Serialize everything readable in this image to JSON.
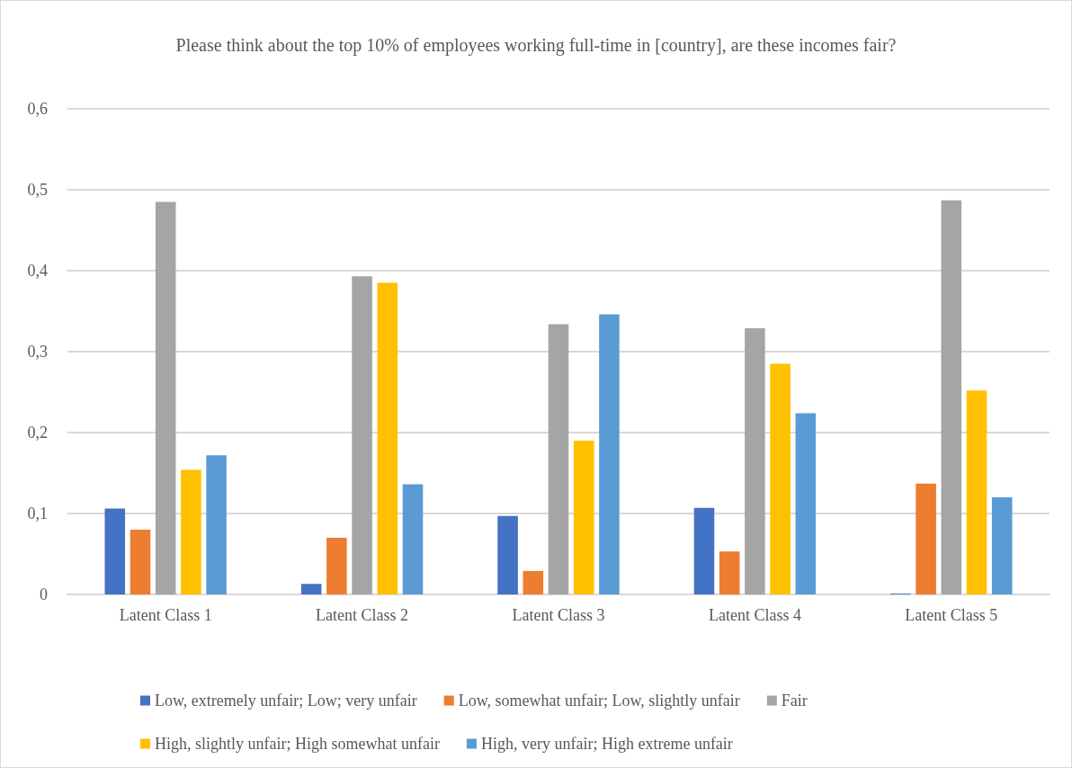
{
  "chart_data": {
    "type": "bar",
    "title": "Please think about the top 10% of employees working full-time in [country], are these incomes fair?",
    "categories": [
      "Latent Class 1",
      "Latent Class 2",
      "Latent Class 3",
      "Latent Class 4",
      "Latent Class 5"
    ],
    "series": [
      {
        "name": "Low, extremely unfair; Low; very unfair",
        "color": "#4472c4",
        "values": [
          0.106,
          0.013,
          0.097,
          0.107,
          0.001
        ]
      },
      {
        "name": "Low, somewhat unfair; Low, slightly unfair",
        "color": "#ed7d31",
        "values": [
          0.08,
          0.07,
          0.029,
          0.053,
          0.137
        ]
      },
      {
        "name": "Fair",
        "color": "#a5a5a5",
        "values": [
          0.485,
          0.393,
          0.334,
          0.329,
          0.487
        ]
      },
      {
        "name": "High, slightly unfair; High somewhat unfair",
        "color": "#ffc000",
        "values": [
          0.154,
          0.385,
          0.19,
          0.285,
          0.252
        ]
      },
      {
        "name": "High, very unfair; High extreme unfair",
        "color": "#5b9bd5",
        "values": [
          0.172,
          0.136,
          0.346,
          0.224,
          0.12
        ]
      }
    ],
    "ylim": [
      0,
      0.6
    ],
    "yticks": [
      0,
      {
        "value": 0.1,
        "label": "0,1"
      },
      {
        "value": 0.2,
        "label": "0,2"
      },
      {
        "value": 0.3,
        "label": "0,3"
      },
      {
        "value": 0.4,
        "label": "0,4"
      },
      {
        "value": 0.5,
        "label": "0,5"
      },
      {
        "value": 0.6,
        "label": "0,6"
      }
    ],
    "grid": "y",
    "legend": "bottom"
  }
}
